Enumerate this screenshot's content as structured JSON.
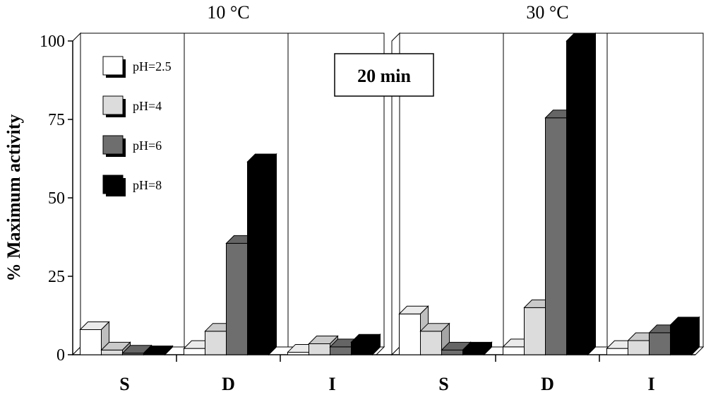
{
  "chart_data": {
    "type": "bar",
    "style": "3d-clustered",
    "ylabel": "% Maximum activity",
    "ylim": [
      0,
      100
    ],
    "yticks": [
      0,
      25,
      50,
      75,
      100
    ],
    "annotation": "20 min",
    "legend_position": "top-left",
    "series": [
      {
        "name": "pH=2.5",
        "color": "#ffffff"
      },
      {
        "name": "pH=4",
        "color": "#dcdcdc"
      },
      {
        "name": "pH=6",
        "color": "#6e6e6e"
      },
      {
        "name": "pH=8",
        "color": "#000000"
      }
    ],
    "panels": [
      {
        "title": "10 °C",
        "categories": [
          "S",
          "D",
          "I"
        ],
        "values": [
          [
            8,
            1.5,
            0.5,
            0.3
          ],
          [
            2,
            7.5,
            35.5,
            61.5
          ],
          [
            0.8,
            3.5,
            2.5,
            4
          ]
        ]
      },
      {
        "title": "30 °C",
        "categories": [
          "S",
          "D",
          "I"
        ],
        "values": [
          [
            13,
            7.5,
            1.5,
            1.5
          ],
          [
            2.5,
            15,
            75.5,
            100
          ],
          [
            2,
            4.5,
            7,
            9.5
          ]
        ]
      }
    ]
  }
}
